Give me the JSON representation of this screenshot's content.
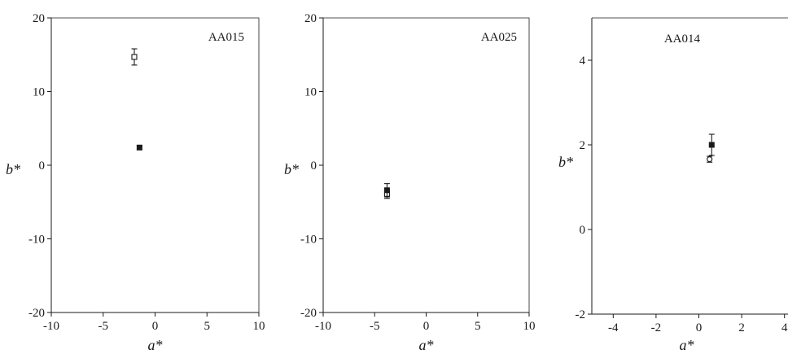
{
  "chart_data": [
    {
      "type": "scatter",
      "title": "AA015",
      "xlabel": "a*",
      "ylabel": "b*",
      "xlim": [
        -10,
        10
      ],
      "ylim": [
        -20,
        20
      ],
      "xticks": [
        "-10",
        "-5",
        "0",
        "5",
        "10"
      ],
      "yticks": [
        "-20",
        "-10",
        "0",
        "10",
        "20"
      ],
      "x_tick_values": [
        -10,
        -5,
        0,
        5,
        10
      ],
      "y_tick_values": [
        -20,
        -10,
        0,
        10,
        20
      ],
      "grid": false,
      "series": [
        {
          "marker": "open-square",
          "points": [
            {
              "x": -2.0,
              "y": 14.7,
              "err": 1.1
            }
          ]
        },
        {
          "marker": "filled-square",
          "points": [
            {
              "x": -1.5,
              "y": 2.4,
              "err": 0.3
            }
          ]
        }
      ]
    },
    {
      "type": "scatter",
      "title": "AA025",
      "xlabel": "a*",
      "ylabel": "b*",
      "xlim": [
        -10,
        10
      ],
      "ylim": [
        -20,
        20
      ],
      "xticks": [
        "-10",
        "-5",
        "0",
        "5",
        "10"
      ],
      "yticks": [
        "-20",
        "-10",
        "0",
        "10",
        "20"
      ],
      "x_tick_values": [
        -10,
        -5,
        0,
        5,
        10
      ],
      "y_tick_values": [
        -20,
        -10,
        0,
        10,
        20
      ],
      "grid": false,
      "series": [
        {
          "marker": "open-square",
          "points": [
            {
              "x": -3.8,
              "y": -3.9,
              "err": 0.6
            }
          ]
        },
        {
          "marker": "filled-square",
          "points": [
            {
              "x": -3.8,
              "y": -3.4,
              "err": 0.9
            }
          ]
        }
      ]
    },
    {
      "type": "scatter",
      "title": "AA014",
      "xlabel": "a*",
      "ylabel": "b*",
      "xlim": [
        -5,
        5
      ],
      "ylim": [
        -2,
        5
      ],
      "xticks": [
        "-4",
        "-2",
        "0",
        "2",
        "4"
      ],
      "yticks": [
        "-2",
        "0",
        "2",
        "4"
      ],
      "x_tick_values": [
        -4,
        -2,
        0,
        2,
        4
      ],
      "y_tick_values": [
        -2,
        0,
        2,
        4
      ],
      "grid": false,
      "series": [
        {
          "marker": "open-circle",
          "points": [
            {
              "x": 0.5,
              "y": 1.66,
              "err": 0.07
            }
          ]
        },
        {
          "marker": "filled-square",
          "points": [
            {
              "x": 0.6,
              "y": 2.0,
              "err": 0.25
            }
          ]
        }
      ]
    }
  ]
}
